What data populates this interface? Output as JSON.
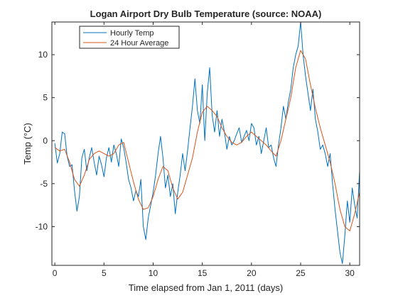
{
  "chart_data": {
    "type": "line",
    "title": "Logan Airport Dry Bulb Temperature (source: NOAA)",
    "xlabel": "Time elapsed from Jan 1, 2011 (days)",
    "ylabel": "Temp (°C)",
    "xlim": [
      -0.3,
      31
    ],
    "ylim": [
      -14.5,
      13.8
    ],
    "xticks": [
      0,
      5,
      10,
      15,
      20,
      25,
      30
    ],
    "xtick_labels": [
      "0",
      "5",
      "10",
      "15",
      "20",
      "25",
      "30"
    ],
    "yticks": [
      -10,
      -5,
      0,
      5,
      10
    ],
    "ytick_labels": [
      "-10",
      "-5",
      "0",
      "5",
      "10"
    ],
    "grid": false,
    "legend_position": "top-left",
    "series": [
      {
        "name": "Hourly Temp",
        "color": "#0072BD",
        "x": [
          0,
          0.25,
          0.5,
          0.75,
          1.0,
          1.25,
          1.5,
          1.75,
          2.0,
          2.25,
          2.5,
          2.75,
          3.0,
          3.25,
          3.5,
          3.75,
          4.0,
          4.25,
          4.5,
          4.75,
          5.0,
          5.25,
          5.5,
          5.75,
          6.0,
          6.25,
          6.5,
          6.75,
          7.0,
          7.25,
          7.5,
          7.75,
          8.0,
          8.25,
          8.5,
          8.75,
          9.0,
          9.25,
          9.5,
          9.75,
          10.0,
          10.25,
          10.5,
          10.75,
          11.0,
          11.25,
          11.5,
          11.75,
          12.0,
          12.25,
          12.5,
          12.75,
          13.0,
          13.25,
          13.5,
          13.75,
          14.0,
          14.25,
          14.5,
          14.75,
          15.0,
          15.25,
          15.5,
          15.75,
          16.0,
          16.25,
          16.5,
          16.75,
          17.0,
          17.25,
          17.5,
          17.75,
          18.0,
          18.25,
          18.5,
          18.75,
          19.0,
          19.25,
          19.5,
          19.75,
          20.0,
          20.25,
          20.5,
          20.75,
          21.0,
          21.25,
          21.5,
          21.75,
          22.0,
          22.25,
          22.5,
          22.75,
          23.0,
          23.25,
          23.5,
          23.75,
          24.0,
          24.25,
          24.5,
          24.75,
          25.0,
          25.25,
          25.5,
          25.75,
          26.0,
          26.25,
          26.5,
          26.75,
          27.0,
          27.25,
          27.5,
          27.75,
          28.0,
          28.25,
          28.5,
          28.75,
          29.0,
          29.25,
          29.5,
          29.75,
          30.0,
          30.25,
          30.5,
          30.75,
          31.0
        ],
        "values": [
          -0.3,
          -2.6,
          -1.5,
          1.0,
          0.8,
          -1.8,
          -3.0,
          -2.8,
          -5.8,
          -8.2,
          -6.5,
          -2.0,
          -1.0,
          -3.5,
          -2.0,
          -0.8,
          -2.5,
          -4.0,
          -1.8,
          -2.8,
          -4.2,
          -2.0,
          -0.8,
          -2.5,
          -0.5,
          -1.5,
          -3.0,
          0.2,
          -0.8,
          -2.5,
          -4.5,
          -5.5,
          -7.0,
          -5.8,
          -6.5,
          -4.5,
          -10.0,
          -11.5,
          -9.0,
          -7.5,
          -6.0,
          -4.0,
          -1.5,
          0.5,
          -2.0,
          -5.5,
          -4.0,
          -6.5,
          -5.0,
          -8.5,
          -6.0,
          -4.0,
          -1.5,
          -3.5,
          -1.2,
          1.5,
          4.0,
          7.2,
          3.5,
          2.0,
          6.5,
          0.0,
          5.5,
          8.5,
          3.0,
          1.0,
          3.5,
          0.5,
          2.5,
          1.0,
          -1.0,
          0.5,
          -0.5,
          0.0,
          0.8,
          1.5,
          -0.2,
          0.5,
          1.2,
          0.0,
          2.0,
          1.5,
          -0.5,
          0.5,
          -1.5,
          0.0,
          1.5,
          -0.8,
          -0.5,
          -2.0,
          -3.0,
          -0.5,
          1.5,
          4.0,
          2.5,
          4.5,
          6.0,
          8.5,
          10.0,
          11.0,
          13.8,
          10.0,
          7.5,
          5.5,
          3.5,
          6.0,
          2.5,
          1.0,
          -1.0,
          -0.5,
          -1.5,
          -3.0,
          -1.5,
          -5.0,
          -8.0,
          -10.5,
          -13.0,
          -14.3,
          -11.0,
          -7.0,
          -9.5,
          -5.5,
          -7.5,
          -9.0,
          -3.5
        ]
      },
      {
        "name": "24 Hour Average",
        "color": "#D95319",
        "x": [
          0,
          0.5,
          1.0,
          1.5,
          2.0,
          2.5,
          3.0,
          3.5,
          4.0,
          4.5,
          5.0,
          5.5,
          6.0,
          6.5,
          7.0,
          7.5,
          8.0,
          8.5,
          9.0,
          9.5,
          10.0,
          10.5,
          11.0,
          11.5,
          12.0,
          12.5,
          13.0,
          13.5,
          14.0,
          14.5,
          15.0,
          15.5,
          16.0,
          16.5,
          17.0,
          17.5,
          18.0,
          18.5,
          19.0,
          19.5,
          20.0,
          20.5,
          21.0,
          21.5,
          22.0,
          22.5,
          23.0,
          23.5,
          24.0,
          24.5,
          25.0,
          25.5,
          26.0,
          26.5,
          27.0,
          27.5,
          28.0,
          28.5,
          29.0,
          29.5,
          30.0,
          30.5,
          31.0
        ],
        "values": [
          -0.8,
          -1.2,
          -1.0,
          -2.5,
          -4.5,
          -5.3,
          -4.0,
          -2.2,
          -1.5,
          -1.2,
          -1.5,
          -1.8,
          -1.5,
          -0.5,
          -0.2,
          -2.5,
          -4.8,
          -6.8,
          -8.0,
          -7.8,
          -6.5,
          -4.5,
          -3.0,
          -3.5,
          -5.5,
          -6.8,
          -6.0,
          -4.0,
          -2.0,
          1.0,
          3.3,
          4.0,
          3.5,
          2.8,
          1.5,
          0.5,
          -0.2,
          -0.5,
          -0.2,
          0.5,
          1.0,
          0.5,
          0.0,
          -0.5,
          -1.2,
          -1.8,
          0.0,
          2.5,
          5.0,
          8.5,
          10.5,
          9.5,
          6.5,
          3.8,
          1.5,
          -0.5,
          -2.5,
          -5.0,
          -8.0,
          -10.0,
          -10.5,
          -8.5,
          -6.0
        ]
      }
    ]
  }
}
